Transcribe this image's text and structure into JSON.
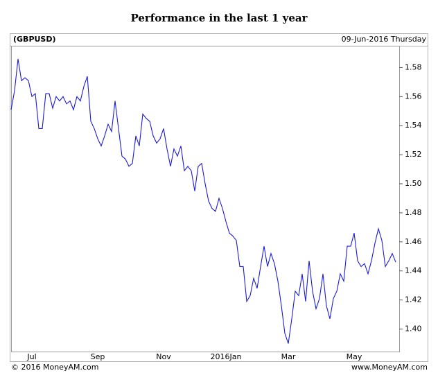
{
  "chart_data": {
    "type": "line",
    "title": "Performance in the last 1 year",
    "symbol": "(GBPUSD)",
    "date": "09-Jun-2016 Thursday",
    "footer_left": "© 2016 MoneyAM.com",
    "footer_right": "www.MoneyAM.com",
    "categories": [
      null,
      null,
      null,
      null,
      null,
      null,
      "Jul",
      null,
      null,
      null,
      null,
      null,
      null,
      null,
      null,
      null,
      null,
      null,
      null,
      null,
      null,
      null,
      null,
      null,
      null,
      "Sep",
      null,
      null,
      null,
      null,
      null,
      null,
      null,
      null,
      null,
      null,
      null,
      null,
      null,
      null,
      null,
      null,
      null,
      null,
      "Nov",
      null,
      null,
      null,
      null,
      null,
      null,
      null,
      null,
      null,
      null,
      null,
      null,
      null,
      null,
      null,
      null,
      null,
      "2016Jan",
      null,
      null,
      null,
      null,
      null,
      null,
      null,
      null,
      null,
      null,
      null,
      null,
      null,
      null,
      null,
      null,
      null,
      "Mar",
      null,
      null,
      null,
      null,
      null,
      null,
      null,
      null,
      null,
      null,
      null,
      null,
      null,
      null,
      null,
      null,
      null,
      null,
      "May",
      null,
      null,
      null,
      null,
      null,
      null,
      null,
      null,
      null,
      null,
      null,
      null
    ],
    "series": [
      {
        "name": "GBPUSD",
        "color": "#1a1adc",
        "values": [
          1.551,
          1.564,
          1.586,
          1.571,
          1.573,
          1.571,
          1.56,
          1.562,
          1.538,
          1.538,
          1.562,
          1.562,
          1.552,
          1.56,
          1.557,
          1.56,
          1.555,
          1.557,
          1.551,
          1.56,
          1.557,
          1.567,
          1.574,
          1.543,
          1.538,
          1.531,
          1.526,
          1.533,
          1.541,
          1.536,
          1.557,
          1.538,
          1.519,
          1.517,
          1.512,
          1.514,
          1.533,
          1.526,
          1.548,
          1.545,
          1.543,
          1.533,
          1.528,
          1.531,
          1.538,
          1.524,
          1.512,
          1.524,
          1.519,
          1.526,
          1.509,
          1.512,
          1.509,
          1.495,
          1.512,
          1.514,
          1.5,
          1.488,
          1.483,
          1.481,
          1.49,
          1.483,
          1.474,
          1.466,
          1.464,
          1.461,
          1.443,
          1.443,
          1.419,
          1.423,
          1.435,
          1.428,
          1.443,
          1.457,
          1.443,
          1.452,
          1.445,
          1.433,
          1.416,
          1.397,
          1.39,
          1.407,
          1.426,
          1.423,
          1.438,
          1.419,
          1.447,
          1.426,
          1.414,
          1.421,
          1.438,
          1.416,
          1.407,
          1.421,
          1.426,
          1.438,
          1.433,
          1.457,
          1.457,
          1.466,
          1.447,
          1.443,
          1.445,
          1.438,
          1.447,
          1.459,
          1.469,
          1.461,
          1.443,
          1.447,
          1.452,
          1.446
        ]
      }
    ],
    "ylim": [
      1.384,
      1.595
    ],
    "yticks": [
      {
        "value": 1.4,
        "label": "1.40"
      },
      1.42,
      1.44,
      1.46,
      1.48,
      {
        "value": 1.5,
        "label": "1.50"
      },
      1.52,
      1.54,
      1.56,
      1.58
    ],
    "grid": false
  }
}
